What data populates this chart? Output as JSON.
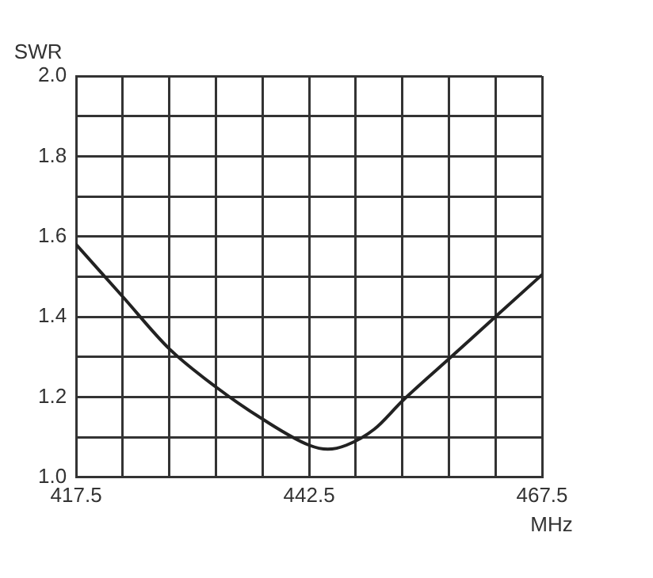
{
  "chart_data": {
    "type": "line",
    "xlabel": "MHz",
    "ylabel": "SWR",
    "x": [
      417.5,
      422.5,
      427.5,
      432.5,
      437.5,
      442.5,
      444.5,
      446.5,
      449.5,
      452.5,
      457.5,
      462.5,
      467.5
    ],
    "series": [
      {
        "color": "#222222",
        "values": [
          1.58,
          1.45,
          1.32,
          1.225,
          1.145,
          1.08,
          1.07,
          1.08,
          1.12,
          1.19,
          1.295,
          1.4,
          1.505
        ]
      }
    ],
    "xlim": [
      417.5,
      467.5
    ],
    "xticks": [
      417.5,
      {
        "value": 422.5,
        "label": null
      },
      {
        "value": 427.5,
        "label": null
      },
      {
        "value": 432.5,
        "label": null
      },
      {
        "value": 437.5,
        "label": null
      },
      442.5,
      {
        "value": 447.5,
        "label": null
      },
      {
        "value": 452.5,
        "label": null
      },
      {
        "value": 457.5,
        "label": null
      },
      {
        "value": 462.5,
        "label": null
      },
      467.5
    ],
    "ylim": [
      1.0,
      2.0
    ],
    "yticks": [
      {
        "value": 1.0,
        "label": "1.0"
      },
      {
        "value": 1.1,
        "label": null
      },
      {
        "value": 1.2,
        "label": "1.2"
      },
      {
        "value": 1.3,
        "label": null
      },
      {
        "value": 1.4,
        "label": "1.4"
      },
      {
        "value": 1.5,
        "label": null
      },
      {
        "value": 1.6,
        "label": "1.6"
      },
      {
        "value": 1.7,
        "label": null
      },
      {
        "value": 1.8,
        "label": "1.8"
      },
      {
        "value": 1.9,
        "label": null
      },
      {
        "value": 2.0,
        "label": "2.0"
      }
    ],
    "grid": true,
    "legend": false,
    "marker": "none",
    "line_style": "solid"
  }
}
